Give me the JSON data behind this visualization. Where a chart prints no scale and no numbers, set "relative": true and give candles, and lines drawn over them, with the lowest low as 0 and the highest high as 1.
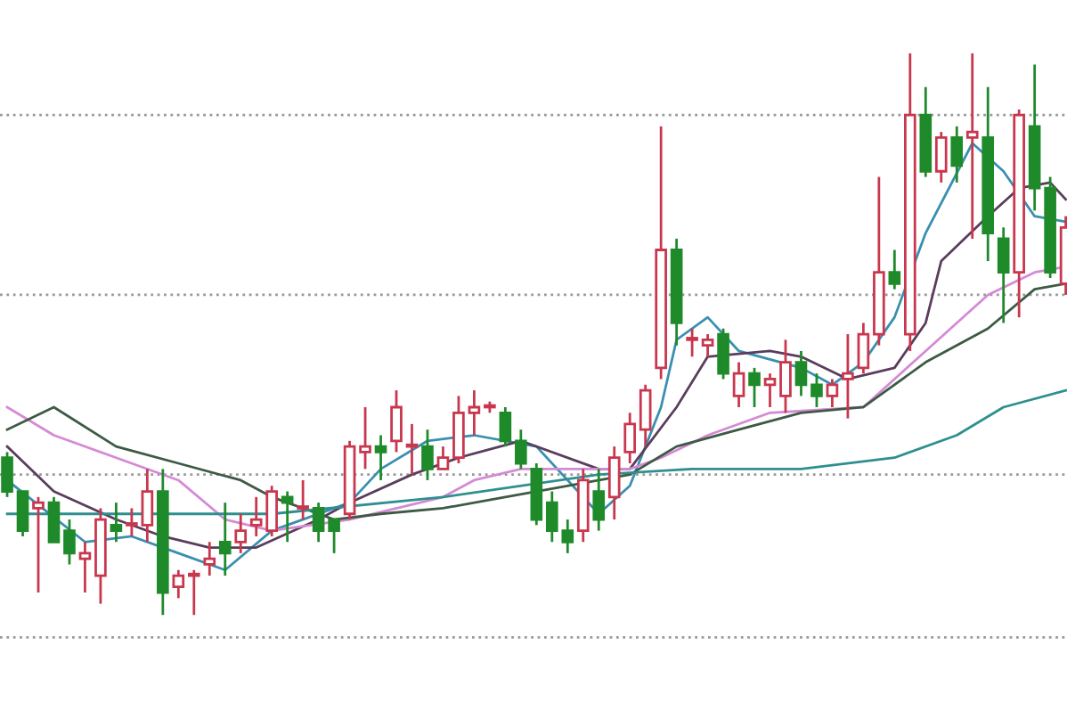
{
  "chart_data": {
    "type": "candlestick",
    "relative": true,
    "categories": [
      null,
      null,
      null,
      null,
      null,
      null,
      null,
      null,
      null,
      null,
      null,
      null,
      null,
      null,
      null,
      null,
      null,
      null,
      null,
      null,
      null,
      null,
      null,
      null,
      null,
      null,
      null,
      null,
      null,
      null,
      null,
      null,
      null,
      null,
      null,
      null,
      null,
      null,
      null,
      null,
      null,
      null,
      null,
      null,
      null,
      null,
      null,
      null,
      null,
      null,
      null,
      null,
      null,
      null,
      null,
      null,
      null,
      null,
      null,
      null,
      null,
      null,
      null,
      null,
      null,
      null,
      null,
      null,
      null
    ],
    "ohlc": [
      [
        0.28,
        0.29,
        0.21,
        0.22
      ],
      [
        0.22,
        0.22,
        0.14,
        0.15
      ],
      [
        0.19,
        0.21,
        0.04,
        0.2
      ],
      [
        0.2,
        0.21,
        0.13,
        0.13
      ],
      [
        0.15,
        0.17,
        0.09,
        0.11
      ],
      [
        0.1,
        0.13,
        0.04,
        0.11
      ],
      [
        0.07,
        0.19,
        0.02,
        0.17
      ],
      [
        0.16,
        0.2,
        0.13,
        0.15
      ],
      [
        0.16,
        0.19,
        0.14,
        0.16
      ],
      [
        0.16,
        0.26,
        0.13,
        0.22
      ],
      [
        0.22,
        0.26,
        0,
        0.04
      ],
      [
        0.05,
        0.08,
        0.03,
        0.07
      ],
      [
        0.07,
        0.08,
        0,
        0.07
      ],
      [
        0.09,
        0.13,
        0.07,
        0.1
      ],
      [
        0.13,
        0.2,
        0.07,
        0.11
      ],
      [
        0.13,
        0.18,
        0.11,
        0.15
      ],
      [
        0.16,
        0.21,
        0.14,
        0.17
      ],
      [
        0.15,
        0.23,
        0.14,
        0.22
      ],
      [
        0.21,
        0.22,
        0.13,
        0.2
      ],
      [
        0.19,
        0.24,
        0.17,
        0.19
      ],
      [
        0.19,
        0.2,
        0.13,
        0.15
      ],
      [
        0.17,
        0.17,
        0.11,
        0.15
      ],
      [
        0.18,
        0.31,
        0.17,
        0.3
      ],
      [
        0.29,
        0.37,
        0.26,
        0.3
      ],
      [
        0.3,
        0.32,
        0.24,
        0.29
      ],
      [
        0.31,
        0.4,
        0.29,
        0.37
      ],
      [
        0.3,
        0.34,
        0.25,
        0.3
      ],
      [
        0.3,
        0.33,
        0.24,
        0.26
      ],
      [
        0.26,
        0.3,
        0.26,
        0.28
      ],
      [
        0.28,
        0.39,
        0.27,
        0.36
      ],
      [
        0.36,
        0.4,
        0.32,
        0.37
      ],
      [
        0.37,
        0.38,
        0.36,
        0.37
      ],
      [
        0.36,
        0.37,
        0.3,
        0.31
      ],
      [
        0.31,
        0.33,
        0.26,
        0.27
      ],
      [
        0.26,
        0.27,
        0.16,
        0.17
      ],
      [
        0.2,
        0.22,
        0.13,
        0.15
      ],
      [
        0.15,
        0.17,
        0.11,
        0.13
      ],
      [
        0.15,
        0.26,
        0.13,
        0.24
      ],
      [
        0.22,
        0.26,
        0.15,
        0.17
      ],
      [
        0.21,
        0.3,
        0.17,
        0.28
      ],
      [
        0.29,
        0.36,
        0.27,
        0.34
      ],
      [
        0.33,
        0.41,
        0.3,
        0.4
      ],
      [
        0.44,
        0.87,
        0.42,
        0.65
      ],
      [
        0.65,
        0.67,
        0.48,
        0.52
      ],
      [
        0.49,
        0.51,
        0.46,
        0.49
      ],
      [
        0.48,
        0.5,
        0.46,
        0.49
      ],
      [
        0.5,
        0.51,
        0.42,
        0.43
      ],
      [
        0.39,
        0.45,
        0.37,
        0.43
      ],
      [
        0.43,
        0.44,
        0.37,
        0.41
      ],
      [
        0.41,
        0.43,
        0.37,
        0.42
      ],
      [
        0.39,
        0.49,
        0.36,
        0.45
      ],
      [
        0.45,
        0.47,
        0.39,
        0.41
      ],
      [
        0.41,
        0.43,
        0.37,
        0.39
      ],
      [
        0.39,
        0.42,
        0.37,
        0.41
      ],
      [
        0.42,
        0.5,
        0.35,
        0.43
      ],
      [
        0.44,
        0.52,
        0.43,
        0.5
      ],
      [
        0.5,
        0.78,
        0.48,
        0.61
      ],
      [
        0.61,
        0.65,
        0.58,
        0.59
      ],
      [
        0.5,
        1,
        0.47,
        0.89
      ],
      [
        0.89,
        0.94,
        0.78,
        0.79
      ],
      [
        0.79,
        0.86,
        0.77,
        0.85
      ],
      [
        0.85,
        0.87,
        0.77,
        0.8
      ],
      [
        0.85,
        1,
        0.67,
        0.86
      ],
      [
        0.85,
        0.94,
        0.63,
        0.68
      ],
      [
        0.67,
        0.69,
        0.52,
        0.61
      ],
      [
        0.61,
        0.9,
        0.53,
        0.89
      ],
      [
        0.87,
        0.98,
        0.72,
        0.76
      ],
      [
        0.76,
        0.78,
        0.6,
        0.61
      ],
      [
        0.59,
        0.71,
        0.57,
        0.69
      ]
    ],
    "colors": [
      "#1e8a2a",
      "#1e8a2a",
      "#c8374e",
      "#1e8a2a",
      "#1e8a2a",
      "#c8374e",
      "#c8374e",
      "#1e8a2a",
      "#c8374e",
      "#c8374e",
      "#1e8a2a",
      "#c8374e",
      "#c8374e",
      "#c8374e",
      "#1e8a2a",
      "#c8374e",
      "#c8374e",
      "#c8374e",
      "#1e8a2a",
      "#c8374e",
      "#1e8a2a",
      "#1e8a2a",
      "#c8374e",
      "#c8374e",
      "#1e8a2a",
      "#c8374e",
      "#c8374e",
      "#1e8a2a",
      "#c8374e",
      "#c8374e",
      "#c8374e",
      "#c8374e",
      "#1e8a2a",
      "#1e8a2a",
      "#1e8a2a",
      "#1e8a2a",
      "#1e8a2a",
      "#c8374e",
      "#1e8a2a",
      "#c8374e",
      "#c8374e",
      "#c8374e",
      "#c8374e",
      "#1e8a2a",
      "#c8374e",
      "#c8374e",
      "#1e8a2a",
      "#c8374e",
      "#1e8a2a",
      "#c8374e",
      "#c8374e",
      "#1e8a2a",
      "#1e8a2a",
      "#c8374e",
      "#c8374e",
      "#c8374e",
      "#c8374e",
      "#1e8a2a",
      "#c8374e",
      "#1e8a2a",
      "#c8374e",
      "#1e8a2a",
      "#c8374e",
      "#1e8a2a",
      "#1e8a2a",
      "#c8374e",
      "#1e8a2a",
      "#1e8a2a",
      "#c8374e"
    ],
    "ref_lines": [
      {
        "axis": "y",
        "value": 0.89,
        "color": "#999999",
        "line_style": "dotted"
      },
      {
        "axis": "y",
        "value": 0.57,
        "color": "#999999",
        "line_style": "dotted"
      },
      {
        "axis": "y",
        "value": 0.25,
        "color": "#999999",
        "line_style": "dotted"
      },
      {
        "axis": "y",
        "value": -0.04,
        "color": "#999999",
        "line_style": "dotted"
      }
    ],
    "series": [
      {
        "type": "line",
        "color": "#3a8fb0",
        "values": [
          0.24,
          null,
          null,
          null,
          null,
          0.13,
          null,
          null,
          0.14,
          null,
          null,
          0.11,
          null,
          null,
          0.08,
          null,
          null,
          0.15,
          null,
          null,
          null,
          null,
          0.2,
          null,
          0.26,
          null,
          null,
          0.31,
          null,
          null,
          0.32,
          null,
          null,
          null,
          0.3,
          null,
          null,
          null,
          0.18,
          null,
          0.23,
          null,
          0.37,
          0.49,
          null,
          0.53,
          null,
          0.47,
          null,
          null,
          null,
          0.44,
          null,
          0.41,
          null,
          0.45,
          null,
          0.53,
          null,
          0.68,
          null,
          null,
          0.84,
          null,
          0.79,
          null,
          0.71,
          null,
          0.7
        ]
      },
      {
        "type": "line",
        "color": "#5a3d5c",
        "values": [
          0.3,
          null,
          null,
          0.22,
          null,
          null,
          null,
          0.17,
          null,
          null,
          0.14,
          null,
          null,
          0.12,
          null,
          null,
          0.12,
          null,
          null,
          null,
          0.17,
          null,
          0.2,
          null,
          null,
          null,
          0.25,
          null,
          null,
          0.28,
          null,
          null,
          null,
          0.31,
          null,
          null,
          null,
          null,
          0.26,
          null,
          0.26,
          null,
          null,
          0.37,
          null,
          0.46,
          null,
          null,
          null,
          0.47,
          null,
          0.46,
          null,
          null,
          0.42,
          null,
          null,
          0.44,
          null,
          0.52,
          0.63,
          null,
          null,
          0.71,
          null,
          0.76,
          null,
          0.77,
          0.74
        ]
      },
      {
        "type": "line",
        "color": "#d58ad5",
        "values": [
          0.37,
          null,
          null,
          0.32,
          null,
          null,
          null,
          0.28,
          null,
          null,
          null,
          0.24,
          null,
          null,
          0.17,
          null,
          null,
          0.15,
          null,
          null,
          null,
          null,
          0.17,
          null,
          null,
          null,
          null,
          null,
          0.21,
          null,
          0.24,
          null,
          null,
          0.26,
          null,
          null,
          null,
          null,
          null,
          null,
          0.26,
          null,
          0.28,
          null,
          null,
          0.32,
          null,
          null,
          null,
          0.36,
          null,
          null,
          null,
          null,
          null,
          0.37,
          null,
          null,
          null,
          0.47,
          null,
          null,
          null,
          0.57,
          null,
          null,
          0.61,
          null,
          0.62
        ]
      },
      {
        "type": "line",
        "color": "#3d5a44",
        "values": [
          0.33,
          null,
          null,
          0.37,
          null,
          null,
          null,
          0.3,
          null,
          null,
          null,
          0.27,
          null,
          null,
          null,
          0.24,
          null,
          0.21,
          null,
          null,
          null,
          0.17,
          null,
          null,
          0.18,
          null,
          null,
          null,
          0.19,
          null,
          null,
          null,
          0.21,
          null,
          0.22,
          null,
          null,
          null,
          null,
          null,
          0.25,
          null,
          null,
          0.3,
          null,
          null,
          null,
          0.33,
          null,
          null,
          null,
          0.36,
          null,
          null,
          null,
          0.37,
          null,
          null,
          null,
          0.45,
          null,
          null,
          null,
          0.51,
          null,
          null,
          0.58,
          null,
          0.59
        ]
      },
      {
        "type": "line",
        "color": "#2f8f8f",
        "values": [
          0.18,
          null,
          null,
          null,
          null,
          null,
          null,
          null,
          null,
          null,
          null,
          null,
          null,
          null,
          null,
          null,
          null,
          0.18,
          null,
          null,
          null,
          null,
          null,
          null,
          null,
          null,
          null,
          null,
          0.21,
          null,
          null,
          null,
          null,
          null,
          null,
          null,
          null,
          null,
          0.25,
          null,
          null,
          null,
          null,
          null,
          0.26,
          null,
          null,
          null,
          null,
          null,
          null,
          0.26,
          null,
          null,
          null,
          null,
          null,
          0.28,
          null,
          null,
          null,
          0.32,
          null,
          null,
          0.37,
          null,
          null,
          null,
          0.4
        ]
      }
    ]
  }
}
